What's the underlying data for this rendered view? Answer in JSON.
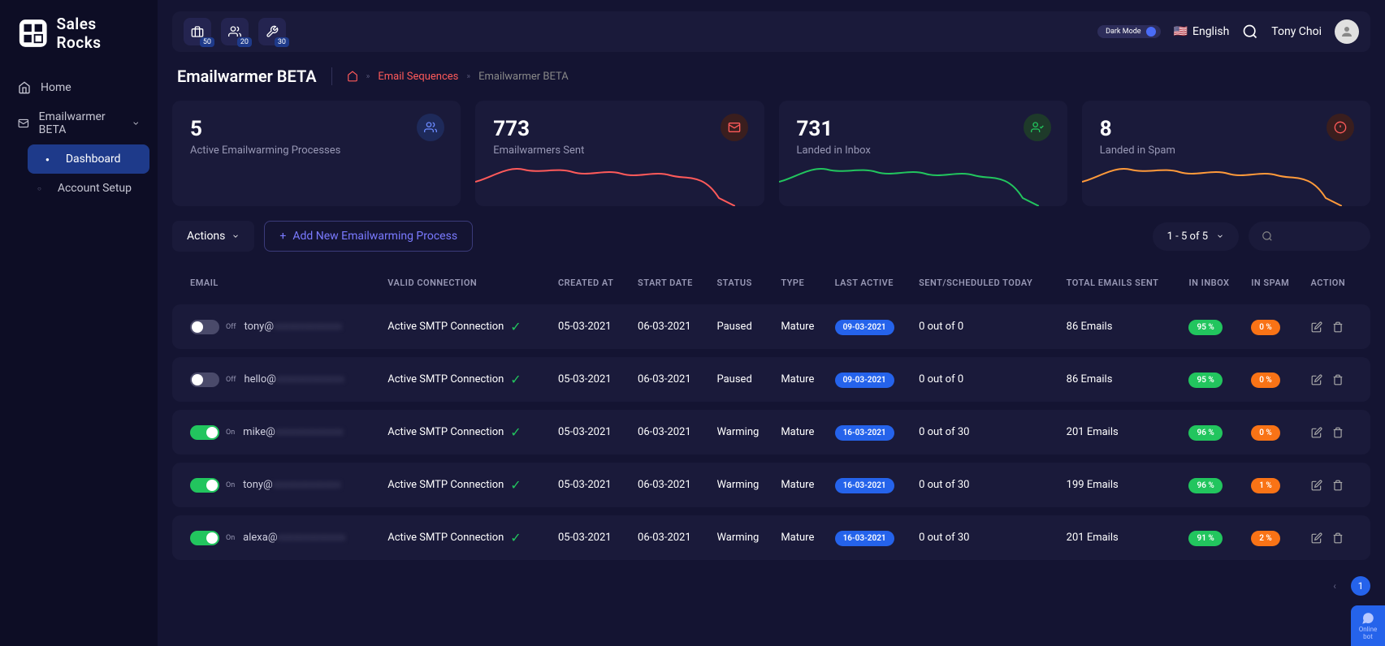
{
  "brand": "Sales Rocks",
  "topbar": {
    "badges": [
      {
        "icon": "briefcase",
        "count": "50"
      },
      {
        "icon": "users",
        "count": "20"
      },
      {
        "icon": "wrench",
        "count": "30"
      }
    ],
    "dark_mode_label": "Dark Mode",
    "language": "English",
    "flag": "🇺🇸",
    "username": "Tony Choi"
  },
  "page": {
    "title": "Emailwarmer BETA",
    "breadcrumb": {
      "link": "Email Sequences",
      "current": "Emailwarmer BETA"
    }
  },
  "nav": {
    "home": "Home",
    "emailwarmer": "Emailwarmer BETA",
    "dashboard": "Dashboard",
    "account_setup": "Account Setup"
  },
  "stats": [
    {
      "value": "5",
      "label": "Active Emailwarming Processes",
      "icon": "users",
      "icon_bg": "#1e2a5a",
      "icon_color": "#6b8aff",
      "spark_color": "none"
    },
    {
      "value": "773",
      "label": "Emailwarmers Sent",
      "icon": "mail",
      "icon_bg": "#3a1e1e",
      "icon_color": "#ff5a5a",
      "spark_color": "#ff5a5a"
    },
    {
      "value": "731",
      "label": "Landed in Inbox",
      "icon": "user-check",
      "icon_bg": "#1e3a2a",
      "icon_color": "#22c55e",
      "spark_color": "#22c55e"
    },
    {
      "value": "8",
      "label": "Landed in Spam",
      "icon": "alert",
      "icon_bg": "#3a1e1e",
      "icon_color": "#ff5a5a",
      "spark_color": "#ff9a3a"
    }
  ],
  "actions": {
    "actions_btn": "Actions",
    "add_btn": "Add New Emailwarming Process",
    "pager": "1 - 5 of 5"
  },
  "table": {
    "columns": [
      "EMAIL",
      "VALID CONNECTION",
      "CREATED AT",
      "START DATE",
      "STATUS",
      "TYPE",
      "LAST ACTIVE",
      "SENT/SCHEDULED TODAY",
      "TOTAL EMAILS SENT",
      "IN INBOX",
      "IN SPAM",
      "ACTION"
    ],
    "rows": [
      {
        "toggle": "off",
        "toggle_label": "Off",
        "email_prefix": "tony@",
        "conn": "Active SMTP Connection",
        "created": "05-03-2021",
        "start": "06-03-2021",
        "status": "Paused",
        "type": "Mature",
        "last_active": "09-03-2021",
        "sent": "0 out of 0",
        "total": "86 Emails",
        "inbox": "95 %",
        "spam": "0 %"
      },
      {
        "toggle": "off",
        "toggle_label": "Off",
        "email_prefix": "hello@",
        "conn": "Active SMTP Connection",
        "created": "05-03-2021",
        "start": "06-03-2021",
        "status": "Paused",
        "type": "Mature",
        "last_active": "09-03-2021",
        "sent": "0 out of 0",
        "total": "86 Emails",
        "inbox": "95 %",
        "spam": "0 %"
      },
      {
        "toggle": "on",
        "toggle_label": "On",
        "email_prefix": "mike@",
        "conn": "Active SMTP Connection",
        "created": "05-03-2021",
        "start": "06-03-2021",
        "status": "Warming",
        "type": "Mature",
        "last_active": "16-03-2021",
        "sent": "0 out of 30",
        "total": "201 Emails",
        "inbox": "96 %",
        "spam": "0 %"
      },
      {
        "toggle": "on",
        "toggle_label": "On",
        "email_prefix": "tony@",
        "conn": "Active SMTP Connection",
        "created": "05-03-2021",
        "start": "06-03-2021",
        "status": "Warming",
        "type": "Mature",
        "last_active": "16-03-2021",
        "sent": "0 out of 30",
        "total": "199 Emails",
        "inbox": "96 %",
        "spam": "1 %"
      },
      {
        "toggle": "on",
        "toggle_label": "On",
        "email_prefix": "alexa@",
        "conn": "Active SMTP Connection",
        "created": "05-03-2021",
        "start": "06-03-2021",
        "status": "Warming",
        "type": "Mature",
        "last_active": "16-03-2021",
        "sent": "0 out of 30",
        "total": "201 Emails",
        "inbox": "91 %",
        "spam": "2 %"
      }
    ]
  },
  "footer": {
    "page": "1"
  },
  "chat": {
    "line1": "Online",
    "line2": "bot"
  }
}
